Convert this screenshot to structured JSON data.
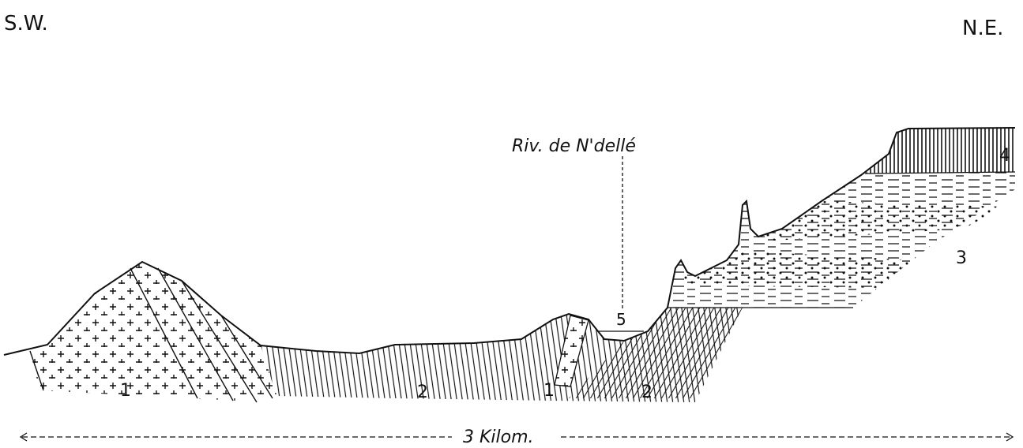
{
  "orientation": {
    "left": "S.W.",
    "right": "N.E."
  },
  "river_label": "Riv. de N'dellé",
  "formation_labels": {
    "f1_left": "1",
    "f2_left": "2",
    "f1_center": "1",
    "f2_center": "2",
    "f3": "3",
    "f4": "4",
    "f5": "5"
  },
  "scale": {
    "label": "3 Kilom."
  },
  "colors": {
    "ink": "#111111",
    "background": "#ffffff"
  }
}
